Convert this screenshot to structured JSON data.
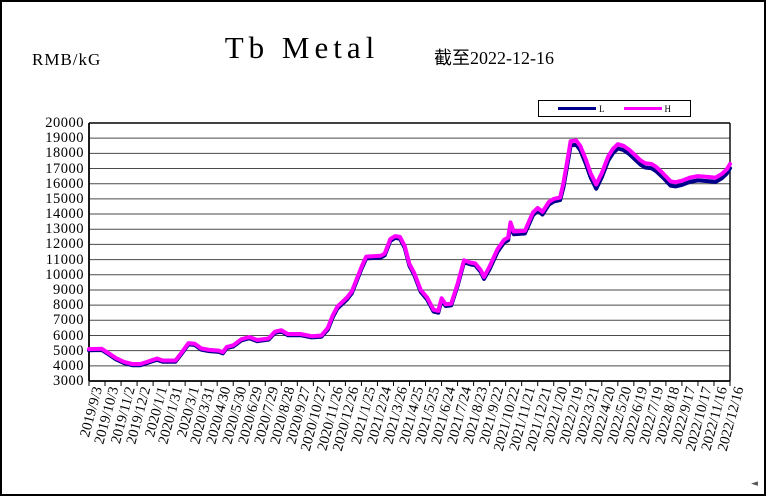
{
  "header": {
    "unit_label": "RMB/kG",
    "title": "Tb Metal",
    "as_of": "截至2022-12-16"
  },
  "legend": {
    "items": [
      {
        "label": "L",
        "color": "#00008B"
      },
      {
        "label": "H",
        "color": "#FF00FF"
      }
    ]
  },
  "misc": {
    "cursor_glyph": "◄"
  },
  "chart_data": {
    "type": "line",
    "title": "Tb Metal",
    "ylabel": "RMB/kG",
    "as_of_note": "截至2022-12-16",
    "ylim": [
      3000,
      20000
    ],
    "ytick_step": 1000,
    "grid": true,
    "legend_position": "top-right",
    "y_tick_labels": [
      "20000",
      "19000",
      "18000",
      "17000",
      "16000",
      "15000",
      "14000",
      "13000",
      "12000",
      "11000",
      "10000",
      "9000",
      "8000",
      "7000",
      "6000",
      "5000",
      "4000",
      "3000"
    ],
    "x_labels": [
      "2019/9/3",
      "2019/10/3",
      "2019/11/2",
      "2019/12/2",
      "2020/1/1",
      "2020/1/31",
      "2020/3/1",
      "2020/3/31",
      "2020/4/30",
      "2020/5/30",
      "2020/6/29",
      "2020/7/29",
      "2020/8/28",
      "2020/9/27",
      "2020/10/27",
      "2020/11/26",
      "2020/12/26",
      "2021/1/25",
      "2021/2/24",
      "2021/3/26",
      "2021/4/25",
      "2021/5/25",
      "2021/6/24",
      "2021/7/24",
      "2021/8/23",
      "2021/9/22",
      "2021/10/22",
      "2021/11/21",
      "2021/12/21",
      "2022/1/20",
      "2022/2/19",
      "2022/3/21",
      "2022/4/20",
      "2022/5/20",
      "2022/6/19",
      "2022/7/19",
      "2022/8/18",
      "2022/9/17",
      "2022/10/17",
      "2022/11/16",
      "2022/12/16"
    ],
    "x": [
      0,
      0.8,
      1.2,
      1.7,
      2.2,
      2.7,
      3.2,
      3.6,
      4.0,
      4.25,
      4.6,
      5.4,
      5.8,
      6.2,
      6.6,
      7.0,
      7.5,
      8.1,
      8.35,
      8.6,
      9.0,
      9.5,
      10.0,
      10.5,
      11.2,
      11.6,
      12.0,
      12.4,
      13.2,
      13.9,
      14.5,
      14.9,
      15.2,
      15.5,
      15.8,
      16.1,
      16.4,
      16.7,
      17.0,
      17.3,
      18.2,
      18.45,
      18.8,
      19.1,
      19.4,
      19.7,
      20.0,
      20.3,
      20.7,
      21.1,
      21.5,
      21.8,
      22.0,
      22.25,
      22.6,
      23.0,
      23.4,
      23.8,
      24.1,
      24.45,
      24.65,
      25.0,
      25.5,
      25.9,
      26.15,
      26.3,
      26.5,
      27.2,
      27.7,
      28.0,
      28.3,
      28.7,
      29.0,
      29.4,
      29.6,
      29.85,
      30.05,
      30.4,
      30.65,
      31.0,
      31.3,
      31.65,
      32.0,
      32.4,
      32.7,
      33.0,
      33.35,
      33.7,
      34.0,
      34.4,
      34.7,
      35.1,
      35.4,
      35.8,
      36.3,
      36.6,
      37.0,
      37.5,
      38.0,
      38.6,
      39.1,
      39.5,
      39.8,
      40.0
    ],
    "series": [
      {
        "name": "L",
        "color": "#00008B",
        "values": [
          5020,
          5040,
          4770,
          4420,
          4170,
          4040,
          4040,
          4170,
          4320,
          4400,
          4270,
          4270,
          4820,
          5420,
          5370,
          5070,
          4970,
          4920,
          4820,
          5170,
          5270,
          5670,
          5820,
          5620,
          5720,
          6170,
          6270,
          6020,
          6020,
          5870,
          5920,
          6380,
          7180,
          7780,
          8080,
          8380,
          8780,
          9580,
          10380,
          11080,
          11130,
          11280,
          12230,
          12430,
          12380,
          11780,
          10580,
          9980,
          8880,
          8380,
          7580,
          7500,
          8330,
          7940,
          7980,
          9280,
          10830,
          10680,
          10630,
          10180,
          9730,
          10370,
          11520,
          12120,
          12270,
          13270,
          12670,
          12720,
          13920,
          14220,
          13970,
          14620,
          14820,
          14920,
          15720,
          17220,
          18520,
          18570,
          18220,
          17320,
          16420,
          15670,
          16420,
          17520,
          18020,
          18320,
          18220,
          17970,
          17670,
          17270,
          17070,
          17020,
          16820,
          16420,
          15870,
          15820,
          15920,
          16120,
          16220,
          16170,
          16120,
          16370,
          16670,
          17020
        ]
      },
      {
        "name": "H",
        "color": "#FF00FF",
        "values": [
          5100,
          5120,
          4850,
          4500,
          4250,
          4120,
          4120,
          4250,
          4400,
          4480,
          4350,
          4350,
          4900,
          5500,
          5450,
          5150,
          5050,
          5000,
          4900,
          5250,
          5350,
          5750,
          5900,
          5700,
          5800,
          6250,
          6350,
          6100,
          6100,
          5950,
          6000,
          6500,
          7300,
          7900,
          8200,
          8500,
          8900,
          9700,
          10500,
          11200,
          11250,
          11400,
          12350,
          12550,
          12500,
          11900,
          10700,
          10100,
          9000,
          8500,
          7700,
          7620,
          8450,
          8060,
          8100,
          9400,
          10950,
          10800,
          10750,
          10300,
          9850,
          10550,
          11700,
          12300,
          12450,
          13450,
          12850,
          12900,
          14100,
          14400,
          14150,
          14800,
          15000,
          15100,
          16000,
          17500,
          18800,
          18850,
          18500,
          17600,
          16700,
          15950,
          16700,
          17800,
          18300,
          18600,
          18500,
          18250,
          17950,
          17550,
          17350,
          17300,
          17100,
          16700,
          16150,
          16100,
          16200,
          16400,
          16500,
          16450,
          16400,
          16650,
          16950,
          17300
        ]
      }
    ]
  }
}
